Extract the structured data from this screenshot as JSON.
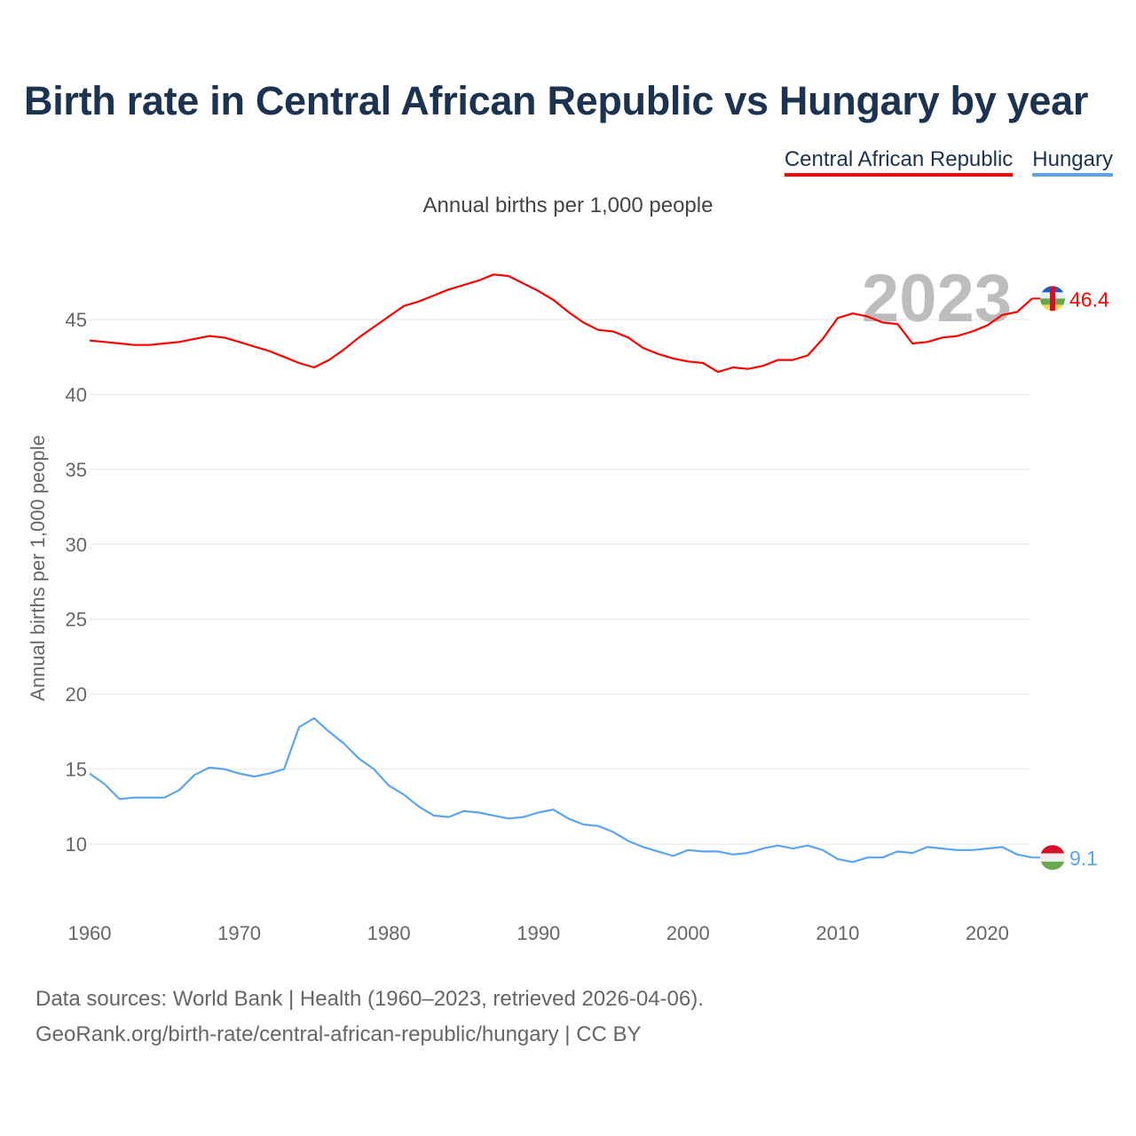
{
  "title": "Birth rate in Central African Republic vs Hungary by year",
  "legend": [
    "Central African Republic",
    "Hungary"
  ],
  "footer": {
    "line1": "Data sources: World Bank | Health (1960–2023, retrieved 2026-04-06).",
    "line2": "GeoRank.org/birth-rate/central-african-republic/hungary | CC BY"
  },
  "chart_data": {
    "type": "line",
    "title": "Birth rate in Central African Republic vs Hungary by year",
    "subtitle": "Annual births per 1,000 people",
    "xlabel": "",
    "ylabel": "Annual births per 1,000 people",
    "year_label": "2023",
    "xlim": [
      1960,
      2023
    ],
    "ylim": [
      6.5,
      49
    ],
    "xticks": [
      "1960",
      "1970",
      "1980",
      "1990",
      "2000",
      "2010",
      "2020"
    ],
    "yticks": [
      "10",
      "15",
      "20",
      "25",
      "30",
      "35",
      "40",
      "45"
    ],
    "grid": true,
    "legend_position": "top-right",
    "x_start": 1960,
    "series": [
      {
        "name": "Central African Republic",
        "color": "#ff0000",
        "end_label": "46.4",
        "values": [
          43.6,
          43.5,
          43.4,
          43.3,
          43.3,
          43.4,
          43.5,
          43.7,
          43.9,
          43.8,
          43.5,
          43.2,
          42.9,
          42.5,
          42.1,
          41.8,
          42.3,
          43.0,
          43.8,
          44.5,
          45.2,
          45.9,
          46.2,
          46.6,
          47.0,
          47.3,
          47.6,
          48.0,
          47.9,
          47.4,
          46.9,
          46.3,
          45.5,
          44.8,
          44.3,
          44.2,
          43.8,
          43.1,
          42.7,
          42.4,
          42.2,
          42.1,
          41.5,
          41.8,
          41.7,
          41.9,
          42.3,
          42.3,
          42.6,
          43.7,
          45.1,
          45.4,
          45.2,
          44.8,
          44.7,
          43.4,
          43.5,
          43.8,
          43.9,
          44.2,
          44.6,
          45.3,
          45.5,
          46.4
        ]
      },
      {
        "name": "Hungary",
        "color": "#5ba4ee",
        "end_label": "9.1",
        "values": [
          14.7,
          14.0,
          13.0,
          13.1,
          13.1,
          13.1,
          13.6,
          14.6,
          15.1,
          15.0,
          14.7,
          14.5,
          14.7,
          15.0,
          17.8,
          18.4,
          17.5,
          16.7,
          15.7,
          15.0,
          13.9,
          13.3,
          12.5,
          11.9,
          11.8,
          12.2,
          12.1,
          11.9,
          11.7,
          11.8,
          12.1,
          12.3,
          11.7,
          11.3,
          11.2,
          10.8,
          10.2,
          9.8,
          9.5,
          9.2,
          9.6,
          9.5,
          9.5,
          9.3,
          9.4,
          9.7,
          9.9,
          9.7,
          9.9,
          9.6,
          9.0,
          8.8,
          9.1,
          9.1,
          9.5,
          9.4,
          9.8,
          9.7,
          9.6,
          9.6,
          9.7,
          9.8,
          9.3,
          9.1
        ]
      }
    ]
  }
}
